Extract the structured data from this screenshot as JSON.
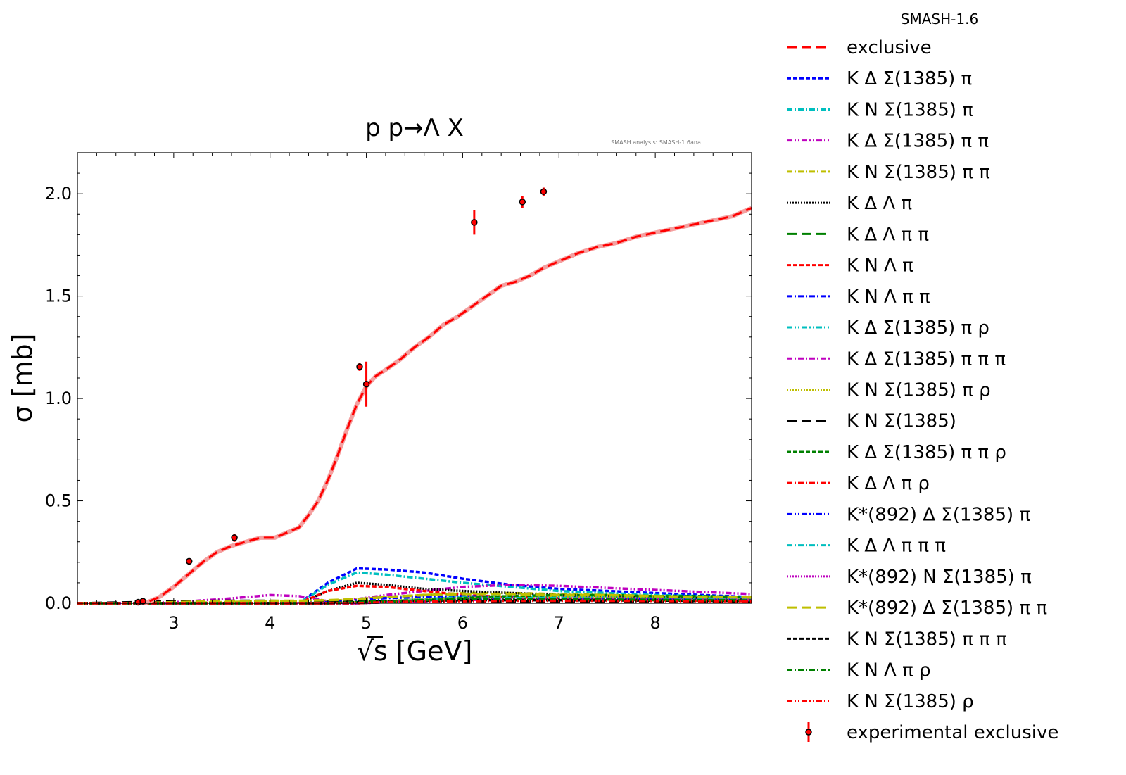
{
  "chart_data": {
    "type": "line",
    "title": "p p→Λ X",
    "annotation": "SMASH analysis: SMASH-1.6ana",
    "legend_title": "SMASH-1.6",
    "legend_placement": "outside-right",
    "xlabel": "√s [GeV]",
    "xlabel_parts": {
      "sqrt": "√",
      "var": "s",
      "unit": "[GeV]"
    },
    "ylabel": "σ [mb]",
    "xlim": [
      2.0,
      9.0
    ],
    "ylim": [
      0.0,
      2.2
    ],
    "xticks": [
      3,
      4,
      5,
      6,
      7,
      8
    ],
    "xtick_labels": [
      "3",
      "4",
      "5",
      "6",
      "7",
      "8"
    ],
    "yticks": [
      0.0,
      0.5,
      1.0,
      1.5,
      2.0
    ],
    "ytick_labels": [
      "0.0",
      "0.5",
      "1.0",
      "1.5",
      "2.0"
    ],
    "grid": false,
    "exclusive": {
      "name": "exclusive",
      "color": "#ff0000",
      "style": "dashed",
      "x": [
        2.6,
        2.7,
        2.85,
        3.0,
        3.15,
        3.3,
        3.45,
        3.6,
        3.75,
        3.9,
        4.05,
        4.2,
        4.3,
        4.4,
        4.5,
        4.6,
        4.7,
        4.8,
        4.9,
        5.0,
        5.1,
        5.2,
        5.35,
        5.5,
        5.65,
        5.8,
        5.95,
        6.1,
        6.25,
        6.4,
        6.55,
        6.7,
        6.85,
        7.0,
        7.2,
        7.4,
        7.6,
        7.8,
        8.0,
        8.2,
        8.4,
        8.6,
        8.8,
        9.0
      ],
      "y": [
        0,
        0.0,
        0.03,
        0.08,
        0.14,
        0.2,
        0.25,
        0.28,
        0.3,
        0.32,
        0.32,
        0.35,
        0.37,
        0.43,
        0.5,
        0.6,
        0.72,
        0.85,
        0.97,
        1.06,
        1.11,
        1.14,
        1.19,
        1.25,
        1.3,
        1.36,
        1.4,
        1.45,
        1.5,
        1.55,
        1.57,
        1.6,
        1.64,
        1.67,
        1.71,
        1.74,
        1.76,
        1.79,
        1.81,
        1.83,
        1.85,
        1.87,
        1.89,
        1.93
      ]
    },
    "channel_x": [
      2.0,
      2.6,
      3.0,
      3.5,
      4.0,
      4.3,
      4.6,
      4.9,
      5.2,
      5.6,
      6.0,
      6.5,
      7.0,
      7.5,
      8.0,
      8.5,
      9.0
    ],
    "series": [
      {
        "name": "K Δ Σ(1385) π",
        "color": "#0000ff",
        "style": "dashed-short",
        "values": [
          0,
          0,
          0,
          0,
          0,
          0,
          0.1,
          0.17,
          0.165,
          0.15,
          0.12,
          0.09,
          0.07,
          0.06,
          0.05,
          0.04,
          0.03
        ]
      },
      {
        "name": "K N Σ(1385) π",
        "color": "#00bfbf",
        "style": "dashdot",
        "values": [
          0,
          0,
          0,
          0,
          0,
          0,
          0.09,
          0.15,
          0.14,
          0.12,
          0.1,
          0.08,
          0.06,
          0.05,
          0.04,
          0.035,
          0.03
        ]
      },
      {
        "name": "K Δ Σ(1385) π π",
        "color": "#bf00bf",
        "style": "dashdotdot",
        "values": [
          0,
          0,
          0.005,
          0.02,
          0.04,
          0.035,
          0.01,
          0.02,
          0.04,
          0.06,
          0.08,
          0.09,
          0.085,
          0.075,
          0.065,
          0.055,
          0.045
        ]
      },
      {
        "name": "K N Σ(1385) π π",
        "color": "#bfbf00",
        "style": "dashdot",
        "values": [
          0,
          0,
          0,
          0.005,
          0.01,
          0.01,
          0.01,
          0.02,
          0.03,
          0.04,
          0.05,
          0.05,
          0.045,
          0.04,
          0.035,
          0.03,
          0.03
        ]
      },
      {
        "name": "K Δ Λ π",
        "color": "#000000",
        "style": "dotted",
        "values": [
          0,
          0,
          0,
          0,
          0,
          0,
          0.06,
          0.1,
          0.09,
          0.07,
          0.06,
          0.05,
          0.04,
          0.035,
          0.03,
          0.025,
          0.02
        ]
      },
      {
        "name": "K Δ Λ π π",
        "color": "#008000",
        "style": "dashed",
        "values": [
          0,
          0,
          0,
          0,
          0,
          0,
          0.005,
          0.02,
          0.03,
          0.04,
          0.045,
          0.045,
          0.04,
          0.035,
          0.03,
          0.025,
          0.02
        ]
      },
      {
        "name": "K N Λ π",
        "color": "#ff0000",
        "style": "dashed-short",
        "values": [
          0,
          0,
          0,
          0,
          0,
          0,
          0.06,
          0.085,
          0.08,
          0.06,
          0.04,
          0.03,
          0.025,
          0.02,
          0.015,
          0.012,
          0.01
        ]
      },
      {
        "name": "K N Λ π π",
        "color": "#0000ff",
        "style": "dashdot",
        "values": [
          0,
          0,
          0,
          0,
          0,
          0,
          0.005,
          0.015,
          0.025,
          0.03,
          0.035,
          0.03,
          0.028,
          0.025,
          0.022,
          0.02,
          0.018
        ]
      },
      {
        "name": "K Δ Σ(1385) π ρ",
        "color": "#00bfbf",
        "style": "dashdotdot",
        "values": [
          0,
          0,
          0,
          0,
          0,
          0,
          0,
          0.005,
          0.01,
          0.02,
          0.03,
          0.035,
          0.035,
          0.03,
          0.03,
          0.025,
          0.025
        ]
      },
      {
        "name": "K Δ Σ(1385) π π π",
        "color": "#bf00bf",
        "style": "dashdot",
        "values": [
          0,
          0,
          0,
          0,
          0,
          0,
          0,
          0.005,
          0.01,
          0.015,
          0.02,
          0.025,
          0.025,
          0.025,
          0.02,
          0.02,
          0.02
        ]
      },
      {
        "name": "K N Σ(1385) π ρ",
        "color": "#bfbf00",
        "style": "dotted",
        "values": [
          0,
          0,
          0,
          0,
          0,
          0,
          0,
          0.005,
          0.01,
          0.02,
          0.025,
          0.03,
          0.03,
          0.028,
          0.025,
          0.022,
          0.02
        ]
      },
      {
        "name": "K N Σ(1385)",
        "color": "#000000",
        "style": "dashed",
        "values": [
          0,
          0.005,
          0.01,
          0.012,
          0.012,
          0.01,
          0.01,
          0.01,
          0.01,
          0.01,
          0.01,
          0.009,
          0.008,
          0.008,
          0.007,
          0.007,
          0.006
        ]
      },
      {
        "name": "K Δ Σ(1385) π π ρ",
        "color": "#008000",
        "style": "dashed-short",
        "values": [
          0,
          0,
          0,
          0,
          0,
          0,
          0,
          0,
          0.005,
          0.015,
          0.025,
          0.035,
          0.04,
          0.04,
          0.035,
          0.035,
          0.03
        ]
      },
      {
        "name": "K Δ Λ π ρ",
        "color": "#ff0000",
        "style": "dashdot",
        "values": [
          0,
          0,
          0,
          0,
          0,
          0,
          0,
          0.005,
          0.01,
          0.015,
          0.02,
          0.02,
          0.02,
          0.018,
          0.016,
          0.015,
          0.014
        ]
      },
      {
        "name": "K*(892) Δ Σ(1385) π",
        "color": "#0000ff",
        "style": "dashdotdot",
        "values": [
          0,
          0,
          0,
          0,
          0,
          0,
          0,
          0,
          0.005,
          0.01,
          0.015,
          0.02,
          0.02,
          0.02,
          0.018,
          0.016,
          0.015
        ]
      },
      {
        "name": "K Δ Λ π π π",
        "color": "#00bfbf",
        "style": "dashdot",
        "values": [
          0,
          0,
          0,
          0,
          0,
          0,
          0,
          0.005,
          0.01,
          0.015,
          0.02,
          0.025,
          0.025,
          0.022,
          0.02,
          0.018,
          0.016
        ]
      },
      {
        "name": "K*(892) N Σ(1385) π",
        "color": "#bf00bf",
        "style": "dotted",
        "values": [
          0,
          0,
          0,
          0,
          0,
          0,
          0,
          0,
          0.005,
          0.01,
          0.015,
          0.02,
          0.02,
          0.02,
          0.018,
          0.016,
          0.015
        ]
      },
      {
        "name": "K*(892) Δ Σ(1385) π π",
        "color": "#bfbf00",
        "style": "dashed",
        "values": [
          0,
          0,
          0.005,
          0.01,
          0.012,
          0.012,
          0.015,
          0.02,
          0.03,
          0.04,
          0.045,
          0.045,
          0.04,
          0.04,
          0.035,
          0.03,
          0.03
        ]
      },
      {
        "name": "K N Σ(1385) π π π",
        "color": "#000000",
        "style": "dashed-short",
        "values": [
          0,
          0,
          0,
          0,
          0,
          0,
          0,
          0.005,
          0.01,
          0.012,
          0.015,
          0.015,
          0.015,
          0.014,
          0.013,
          0.012,
          0.011
        ]
      },
      {
        "name": "K N Λ π ρ",
        "color": "#008000",
        "style": "dashdot",
        "values": [
          0,
          0,
          0,
          0,
          0,
          0,
          0,
          0.005,
          0.01,
          0.015,
          0.02,
          0.02,
          0.02,
          0.018,
          0.016,
          0.015,
          0.014
        ]
      },
      {
        "name": "K N Σ(1385) ρ",
        "color": "#ff0000",
        "style": "dashdotdot",
        "values": [
          0,
          0,
          0,
          0,
          0,
          0,
          0,
          0,
          0.005,
          0.008,
          0.01,
          0.012,
          0.012,
          0.012,
          0.011,
          0.01,
          0.01
        ]
      }
    ],
    "experimental": {
      "name": "experimental exclusive",
      "color": "#ff0000",
      "x": [
        2.63,
        2.68,
        3.16,
        3.63,
        4.93,
        5.0,
        6.12,
        6.62,
        6.84
      ],
      "y": [
        0.005,
        0.01,
        0.205,
        0.32,
        1.155,
        1.07,
        1.86,
        1.96,
        2.01
      ],
      "err": [
        0.005,
        0.005,
        0.01,
        0.02,
        0.02,
        0.11,
        0.06,
        0.03,
        0.02
      ]
    }
  }
}
